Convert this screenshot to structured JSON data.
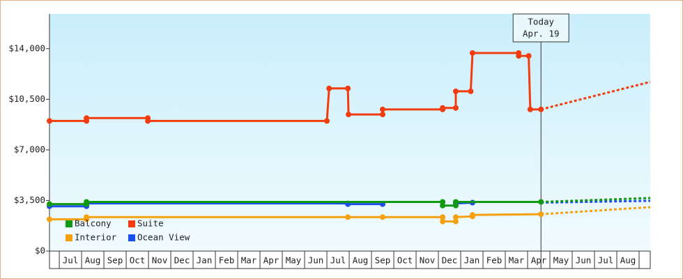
{
  "chart_data": {
    "type": "line",
    "xlim": [
      -0.44,
      26.5
    ],
    "xticks": [
      {
        "value": 0.5,
        "label": "Jul"
      },
      {
        "value": 1.5,
        "label": "Aug"
      },
      {
        "value": 2.5,
        "label": "Sep"
      },
      {
        "value": 3.5,
        "label": "Oct"
      },
      {
        "value": 4.5,
        "label": "Nov"
      },
      {
        "value": 5.5,
        "label": "Dec"
      },
      {
        "value": 6.5,
        "label": "Jan"
      },
      {
        "value": 7.5,
        "label": "Feb"
      },
      {
        "value": 8.5,
        "label": "Mar"
      },
      {
        "value": 9.5,
        "label": "Apr"
      },
      {
        "value": 10.5,
        "label": "May"
      },
      {
        "value": 11.5,
        "label": "Jun"
      },
      {
        "value": 12.5,
        "label": "Jul"
      },
      {
        "value": 13.5,
        "label": "Aug"
      },
      {
        "value": 14.5,
        "label": "Sep"
      },
      {
        "value": 15.5,
        "label": "Oct"
      },
      {
        "value": 16.5,
        "label": "Nov"
      },
      {
        "value": 17.5,
        "label": "Dec"
      },
      {
        "value": 18.5,
        "label": "Jan"
      },
      {
        "value": 19.5,
        "label": "Feb"
      },
      {
        "value": 20.5,
        "label": "Mar"
      },
      {
        "value": 21.5,
        "label": "Apr"
      },
      {
        "value": 22.5,
        "label": "May"
      },
      {
        "value": 23.5,
        "label": "Jun"
      },
      {
        "value": 24.5,
        "label": "Jul"
      },
      {
        "value": 25.5,
        "label": "Aug"
      }
    ],
    "ylim": [
      0,
      16400
    ],
    "yticks": [
      {
        "value": 0,
        "label": "$0"
      },
      {
        "value": 3500,
        "label": "$3,500"
      },
      {
        "value": 7000,
        "label": "$7,000"
      },
      {
        "value": 10500,
        "label": "$10,500"
      },
      {
        "value": 14000,
        "label": "$14,000"
      }
    ],
    "today": {
      "x": 21.6,
      "label": [
        "Today",
        "Apr. 19"
      ]
    },
    "series": [
      {
        "name": "Balcony",
        "color": "#119911",
        "x": [
          -0.44,
          1.22,
          1.22,
          17.19,
          17.19,
          17.78,
          17.78,
          21.6
        ],
        "values": [
          3250,
          3250,
          3400,
          3400,
          3150,
          3150,
          3400,
          3400
        ],
        "forecast_x": [
          21.6,
          26.5
        ],
        "forecast_values": [
          3400,
          3670
        ]
      },
      {
        "name": "Suite",
        "color": "#f03c0f",
        "x": [
          -0.44,
          1.22,
          1.22,
          3.97,
          3.97,
          12.0,
          12.1,
          12.94,
          12.97,
          14.5,
          14.5,
          17.19,
          17.19,
          17.78,
          17.78,
          18.45,
          18.53,
          20.6,
          20.6,
          21.05,
          21.12,
          21.6
        ],
        "values": [
          9000,
          9000,
          9200,
          9200,
          9000,
          9000,
          11250,
          11250,
          9450,
          9450,
          9800,
          9800,
          9900,
          9900,
          11050,
          11050,
          13700,
          13700,
          13500,
          13500,
          9800,
          9800
        ],
        "forecast_x": [
          21.6,
          26.5
        ],
        "forecast_values": [
          9800,
          11700
        ]
      },
      {
        "name": "Interior",
        "color": "#f5a10f",
        "x": [
          -0.44,
          1.22,
          1.22,
          12.94,
          14.5,
          17.19,
          17.19,
          17.78,
          17.78,
          18.53,
          18.53,
          21.6
        ],
        "values": [
          2200,
          2200,
          2350,
          2350,
          2350,
          2350,
          2050,
          2050,
          2350,
          2400,
          2500,
          2550
        ],
        "forecast_x": [
          21.6,
          26.5
        ],
        "forecast_values": [
          2550,
          3040
        ]
      },
      {
        "name": "Ocean View",
        "color": "#1a4fe8",
        "x": [
          -0.44,
          1.22,
          1.22,
          12.94,
          12.94,
          14.5,
          null,
          17.78,
          18.53
        ],
        "values": [
          3100,
          3100,
          3300,
          3300,
          3250,
          3250,
          null,
          3300,
          3350
        ],
        "forecast_x": [
          21.6,
          26.5
        ],
        "forecast_values": [
          3350,
          3480
        ]
      }
    ]
  }
}
